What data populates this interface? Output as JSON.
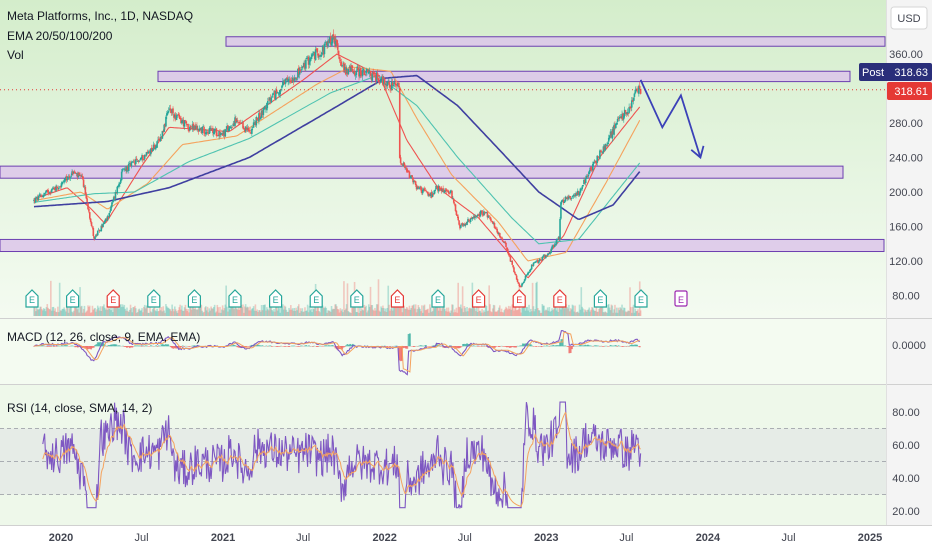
{
  "header": {
    "symbol_line": "Meta Platforms, Inc., 1D, NASDAQ",
    "ema_line": "EMA 20/50/100/200",
    "vol_line": "Vol"
  },
  "currency": "USD",
  "price_tags": {
    "post_label": "Post",
    "post_value": "318.63",
    "last_value": "318.61"
  },
  "colors": {
    "background_top": "#d8efd0",
    "background_bottom": "#f2faef",
    "zone_fill": "#dcc6ea",
    "zone_border": "#6c3fb0",
    "projection": "#3b41b8",
    "candle_up": "#26a69a",
    "candle_down": "#ef5350",
    "ema20": "#ef5350",
    "ema50": "#f5a25d",
    "ema100": "#4fc3b1",
    "ema200": "#3f3fa0",
    "rsi": "#7e57c2",
    "rsi_ma": "#f5a25d",
    "post_tag": "#2a2e7a",
    "last_tag": "#e53935"
  },
  "x_axis_labels": [
    "2020",
    "Jul",
    "2021",
    "Jul",
    "2022",
    "Jul",
    "2023",
    "Jul",
    "2024",
    "Jul",
    "2025"
  ],
  "earnings_markers": [
    {
      "label": "E",
      "kind": "beat"
    },
    {
      "label": "E",
      "kind": "beat"
    },
    {
      "label": "E",
      "kind": "miss"
    },
    {
      "label": "E",
      "kind": "beat"
    },
    {
      "label": "E",
      "kind": "beat"
    },
    {
      "label": "E",
      "kind": "beat"
    },
    {
      "label": "E",
      "kind": "beat"
    },
    {
      "label": "E",
      "kind": "beat"
    },
    {
      "label": "E",
      "kind": "beat"
    },
    {
      "label": "E",
      "kind": "miss"
    },
    {
      "label": "E",
      "kind": "beat"
    },
    {
      "label": "E",
      "kind": "miss"
    },
    {
      "label": "E",
      "kind": "miss"
    },
    {
      "label": "E",
      "kind": "miss"
    },
    {
      "label": "E",
      "kind": "beat"
    },
    {
      "label": "E",
      "kind": "beat"
    },
    {
      "label": "E",
      "kind": "upcoming"
    }
  ],
  "chart_data": {
    "type": "candlestick",
    "symbol": "Meta Platforms, Inc.",
    "interval": "1D",
    "exchange": "NASDAQ",
    "price_axis": {
      "ticks": [
        "360.00",
        "320.00",
        "280.00",
        "240.00",
        "200.00",
        "160.00",
        "120.00",
        "80.00"
      ],
      "range": [
        63,
        390
      ]
    },
    "price_path": {
      "dates": [
        "2019-11-01",
        "2019-12-01",
        "2020-01-01",
        "2020-01-29",
        "2020-02-19",
        "2020-03-16",
        "2020-04-15",
        "2020-05-20",
        "2020-07-01",
        "2020-08-10",
        "2020-09-01",
        "2020-10-15",
        "2020-11-20",
        "2021-01-04",
        "2021-01-27",
        "2021-03-01",
        "2021-04-15",
        "2021-05-20",
        "2021-06-25",
        "2021-07-15",
        "2021-08-15",
        "2021-09-07",
        "2021-10-01",
        "2021-11-01",
        "2021-12-15",
        "2022-01-20",
        "2022-02-02",
        "2022-02-03",
        "2022-03-15",
        "2022-04-20",
        "2022-04-28",
        "2022-06-01",
        "2022-06-20",
        "2022-08-15",
        "2022-09-30",
        "2022-10-27",
        "2022-11-03",
        "2022-11-30",
        "2023-01-05",
        "2023-01-31",
        "2023-02-02",
        "2023-03-15",
        "2023-04-26",
        "2023-05-15",
        "2023-06-15",
        "2023-07-06",
        "2023-07-25",
        "2023-08-02"
      ],
      "close": [
        190,
        200,
        208,
        223,
        214,
        146,
        170,
        225,
        239,
        258,
        295,
        275,
        272,
        268,
        282,
        270,
        305,
        325,
        340,
        355,
        365,
        380,
        342,
        340,
        333,
        322,
        323,
        237,
        205,
        195,
        205,
        198,
        160,
        178,
        140,
        98,
        90,
        115,
        128,
        148,
        188,
        200,
        240,
        255,
        285,
        295,
        318,
        318.61
      ]
    },
    "ema": [
      {
        "period": 20,
        "dates": [
          "2019-11-01",
          "2020-01-15",
          "2020-03-10",
          "2020-04-10",
          "2020-07-01",
          "2020-09-01",
          "2021-01-15",
          "2021-07-01",
          "2021-09-15",
          "2021-12-20",
          "2022-02-20",
          "2022-05-01",
          "2022-08-01",
          "2022-10-15",
          "2022-11-20",
          "2023-02-10",
          "2023-05-01",
          "2023-08-02"
        ],
        "values": [
          192,
          205,
          180,
          163,
          230,
          275,
          270,
          330,
          360,
          335,
          260,
          205,
          170,
          125,
          100,
          150,
          240,
          300
        ]
      },
      {
        "period": 50,
        "dates": [
          "2019-11-01",
          "2020-02-15",
          "2020-04-15",
          "2020-07-15",
          "2020-10-01",
          "2021-02-01",
          "2021-08-01",
          "2021-10-15",
          "2022-01-15",
          "2022-03-15",
          "2022-06-01",
          "2022-09-15",
          "2022-11-20",
          "2023-02-15",
          "2023-05-15",
          "2023-08-02"
        ],
        "values": [
          190,
          200,
          180,
          210,
          255,
          265,
          325,
          345,
          340,
          285,
          220,
          165,
          120,
          130,
          210,
          285
        ]
      },
      {
        "period": 100,
        "dates": [
          "2019-11-01",
          "2020-03-15",
          "2020-06-15",
          "2020-10-15",
          "2021-03-01",
          "2021-09-01",
          "2021-12-15",
          "2022-03-15",
          "2022-06-15",
          "2022-10-15",
          "2022-12-15",
          "2023-03-15",
          "2023-08-02"
        ],
        "values": [
          188,
          198,
          200,
          235,
          262,
          315,
          335,
          300,
          240,
          170,
          140,
          145,
          235
        ]
      },
      {
        "period": 200,
        "dates": [
          "2019-11-01",
          "2020-04-15",
          "2020-09-01",
          "2021-03-01",
          "2021-09-01",
          "2022-01-01",
          "2022-03-15",
          "2022-06-15",
          "2022-09-15",
          "2022-12-15",
          "2023-03-15",
          "2023-06-01",
          "2023-08-02"
        ],
        "values": [
          183,
          189,
          205,
          240,
          295,
          332,
          335,
          300,
          250,
          200,
          168,
          185,
          225
        ]
      }
    ],
    "zones": [
      {
        "low": 369,
        "high": 380
      },
      {
        "low": 328,
        "high": 340
      },
      {
        "low": 216,
        "high": 230
      },
      {
        "low": 131,
        "high": 145
      }
    ],
    "projection": {
      "dates": [
        "2023-08-02",
        "2023-09-20",
        "2023-11-01",
        "2023-12-15"
      ],
      "values": [
        330,
        275,
        312,
        240
      ],
      "arrow_end": "down"
    },
    "macd": {
      "label": "MACD (12, 26, close, 9, EMA, EMA)",
      "params": [
        12,
        26,
        9
      ],
      "last_value": "0.0000",
      "ticks": [
        "0.0000"
      ]
    },
    "rsi": {
      "label": "RSI (14, close, SMA, 14, 2)",
      "period": 14,
      "ticks": [
        "80.00",
        "60.00",
        "40.00",
        "20.00"
      ],
      "range": [
        15,
        90
      ],
      "band": [
        30,
        70
      ]
    }
  }
}
